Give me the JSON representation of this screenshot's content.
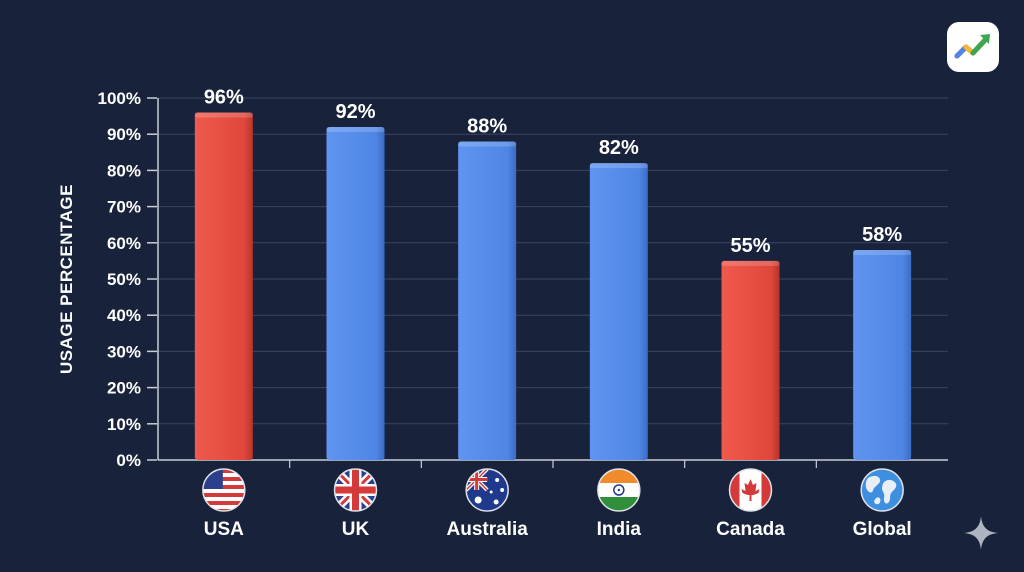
{
  "chart_data": {
    "type": "bar",
    "title": "",
    "xlabel": "",
    "ylabel": "USAGE PERCENTAGE",
    "ylim": [
      0,
      100
    ],
    "yticks": [
      "0%",
      "10%",
      "20%",
      "30%",
      "40%",
      "50%",
      "60%",
      "70%",
      "80%",
      "90%",
      "100%"
    ],
    "grid": true,
    "categories": [
      "USA",
      "UK",
      "Australia",
      "India",
      "Canada",
      "Global"
    ],
    "values": [
      96,
      92,
      88,
      82,
      55,
      58
    ],
    "value_labels": [
      "96%",
      "92%",
      "88%",
      "82%",
      "55%",
      "58%"
    ],
    "bar_colors": [
      "#e0473b",
      "#4f86e6",
      "#4f86e6",
      "#4f86e6",
      "#e0473b",
      "#4f86e6"
    ],
    "category_icons": [
      "us-flag-icon",
      "uk-flag-icon",
      "australia-flag-icon",
      "india-flag-icon",
      "canada-flag-icon",
      "globe-icon"
    ]
  },
  "colors": {
    "background": "#18223a",
    "red": "#e0473b",
    "blue": "#4f86e6",
    "grid": "#3a4560"
  },
  "icons": {
    "top_right": "trend-arrow-logo-icon",
    "bottom_right": "sparkle-icon"
  }
}
